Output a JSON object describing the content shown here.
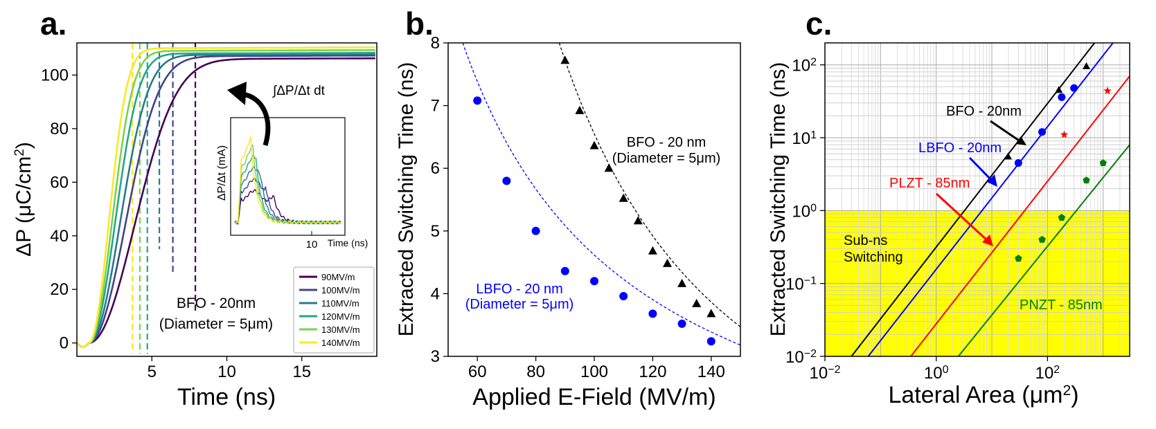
{
  "panels": [
    {
      "id": "a",
      "label": "a.",
      "xlabel": "Time (ns)",
      "ylabel_text": "ΔP (μC/cm",
      "ylabel_sup": "2",
      "ylabel_end": ")",
      "xticks": [
        "5",
        "10",
        "15"
      ],
      "yticks": [
        "0",
        "20",
        "40",
        "60",
        "80",
        "100"
      ],
      "annotation": [
        "BFO - 20nm",
        "(Diameter = 5μm)"
      ],
      "arrow_label": "∫ΔP/Δt dt",
      "inset": {
        "ylabel": "ΔP/Δt (mA)",
        "xlabel": "Time (ns)",
        "xtick": "10"
      },
      "legend": [
        "90MV/m",
        "100MV/m",
        "110MV/m",
        "120MV/m",
        "130MV/m",
        "140MV/m"
      ]
    },
    {
      "id": "b",
      "label": "b.",
      "xlabel": "Applied E-Field (MV/m)",
      "ylabel": "Extracted Switching Time (ns)",
      "xticks": [
        "60",
        "80",
        "100",
        "120",
        "140"
      ],
      "yticks": [
        "3",
        "4",
        "5",
        "6",
        "7",
        "8"
      ],
      "annotations": [
        {
          "lines": [
            "BFO - 20 nm",
            "(Diameter = 5μm)"
          ],
          "color": "#000000"
        },
        {
          "lines": [
            "LBFO - 20 nm",
            "(Diameter = 5μm)"
          ],
          "color": "#0000ff"
        }
      ]
    },
    {
      "id": "c",
      "label": "c.",
      "xlabel_text": "Lateral Area (μm",
      "xlabel_sup": "2",
      "xlabel_end": ")",
      "ylabel": "Extracted Switching Time (ns)",
      "xticks": [
        {
          "base": "10",
          "exp": "−2"
        },
        {
          "base": "10",
          "exp": "0"
        },
        {
          "base": "10",
          "exp": "2"
        }
      ],
      "yticks": [
        {
          "base": "10",
          "exp": "−2"
        },
        {
          "base": "10",
          "exp": "−1"
        },
        {
          "base": "10",
          "exp": "0"
        },
        {
          "base": "10",
          "exp": "1"
        },
        {
          "base": "10",
          "exp": "2"
        }
      ],
      "region_label": [
        "Sub-ns",
        "Switching"
      ],
      "series_labels": [
        "BFO - 20nm",
        "LBFO - 20nm",
        "PLZT - 85nm",
        "PNZT - 85nm"
      ]
    }
  ],
  "chart_data": [
    {
      "type": "line",
      "panel": "a",
      "xlim": [
        0,
        20
      ],
      "ylim": [
        -5,
        112
      ],
      "xlabel": "Time (ns)",
      "ylabel": "ΔP (μC/cm2)",
      "series": [
        {
          "name": "90MV/m",
          "color": "#440154",
          "switch_time": 7.9,
          "plateau": 106
        },
        {
          "name": "100MV/m",
          "color": "#414487",
          "switch_time": 6.4,
          "plateau": 107
        },
        {
          "name": "110MV/m",
          "color": "#2a788e",
          "switch_time": 5.5,
          "plateau": 107.5
        },
        {
          "name": "120MV/m",
          "color": "#22a884",
          "switch_time": 4.7,
          "plateau": 108
        },
        {
          "name": "130MV/m",
          "color": "#7ad151",
          "switch_time": 4.2,
          "plateau": 109
        },
        {
          "name": "140MV/m",
          "color": "#fde725",
          "switch_time": 3.7,
          "plateau": 110
        }
      ],
      "inset": {
        "type": "line",
        "xlabel": "Time (ns)",
        "ylabel": "ΔP/Δt (mA)",
        "xlim": [
          0,
          20
        ]
      }
    },
    {
      "type": "scatter",
      "panel": "b",
      "xlim": [
        50,
        150
      ],
      "ylim": [
        3,
        8
      ],
      "xlabel": "Applied E-Field (MV/m)",
      "ylabel": "Extracted Switching Time (ns)",
      "series": [
        {
          "name": "BFO - 20 nm",
          "color": "#000000",
          "marker": "triangle",
          "x": [
            90,
            95,
            100,
            105,
            110,
            115,
            120,
            125,
            130,
            135,
            140
          ],
          "y": [
            7.72,
            6.92,
            6.36,
            6.0,
            5.52,
            5.16,
            4.68,
            4.48,
            4.16,
            3.84,
            3.68
          ],
          "fit": {
            "x": [
              88,
              150
            ],
            "y": [
              8.0,
              3.47
            ]
          }
        },
        {
          "name": "LBFO - 20 nm",
          "color": "#0000ff",
          "marker": "circle",
          "x": [
            60,
            70,
            80,
            90,
            100,
            110,
            120,
            130,
            140
          ],
          "y": [
            7.08,
            5.8,
            5.0,
            4.36,
            4.2,
            3.96,
            3.68,
            3.52,
            3.24
          ],
          "fit": {
            "x": [
              55,
              150
            ],
            "y": [
              8.0,
              3.18
            ]
          }
        }
      ]
    },
    {
      "type": "scatter",
      "panel": "c",
      "xscale": "log",
      "yscale": "log",
      "xlim": [
        0.01,
        3000
      ],
      "ylim": [
        0.01,
        200
      ],
      "xlabel": "Lateral Area (μm2)",
      "ylabel": "Extracted Switching Time (ns)",
      "shaded_region": {
        "y": [
          0.01,
          1
        ],
        "color": "#ffff00"
      },
      "series": [
        {
          "name": "BFO - 20nm",
          "color": "#000000",
          "marker": "triangle",
          "x": [
            19.6,
            160,
            500
          ],
          "y": [
            5.5,
            45,
            95
          ],
          "fit": {
            "x": [
              0.03,
              700
            ],
            "y": [
              0.01,
              200
            ]
          }
        },
        {
          "name": "LBFO - 20nm",
          "color": "#0000ff",
          "marker": "circle",
          "x": [
            30,
            80,
            180,
            300
          ],
          "y": [
            4.5,
            12,
            36,
            48
          ],
          "fit": {
            "x": [
              0.06,
              1500
            ],
            "y": [
              0.01,
              200
            ]
          }
        },
        {
          "name": "PLZT - 85nm",
          "color": "#ff0000",
          "marker": "star",
          "x": [
            200,
            1200
          ],
          "y": [
            11,
            44
          ],
          "fit": {
            "x": [
              0.35,
              3000
            ],
            "y": [
              0.01,
              70
            ]
          }
        },
        {
          "name": "PNZT - 85nm",
          "color": "#008000",
          "marker": "pentagon",
          "x": [
            30,
            80,
            180,
            500,
            1000
          ],
          "y": [
            0.22,
            0.4,
            0.8,
            2.6,
            4.5
          ],
          "fit": {
            "x": [
              2.5,
              3000
            ],
            "y": [
              0.01,
              8
            ]
          }
        }
      ]
    }
  ]
}
